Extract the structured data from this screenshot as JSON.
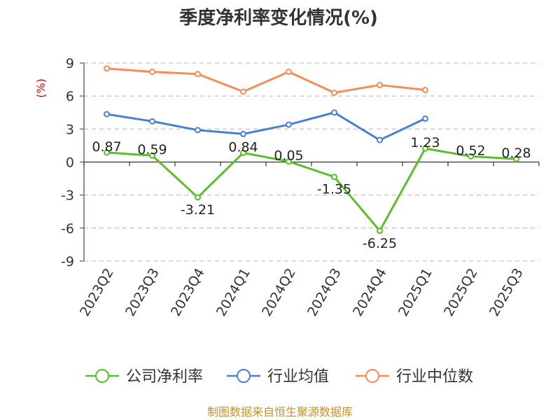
{
  "chart_data": {
    "type": "line",
    "title": "季度净利率变化情况(%)",
    "unit_label": "(%)",
    "categories": [
      "2023Q2",
      "2023Q3",
      "2023Q4",
      "2024Q1",
      "2024Q2",
      "2024Q3",
      "2024Q4",
      "2025Q1",
      "2025Q2",
      "2025Q3"
    ],
    "ylim": [
      -9,
      9
    ],
    "yticks": [
      "9",
      "6",
      "3",
      "0",
      "-3",
      "-6",
      "-9"
    ],
    "grid": true,
    "legend_position": "bottom",
    "series": [
      {
        "name": "公司净利率",
        "color": "#5cbf2a",
        "values": [
          0.87,
          0.59,
          -3.21,
          0.84,
          0.05,
          -1.35,
          -6.25,
          1.23,
          0.52,
          0.28
        ],
        "labels": [
          "0.87",
          "0.59",
          "-3.21",
          "0.84",
          "0.05",
          "-1.35",
          "-6.25",
          "1.23",
          "0.52",
          "0.28"
        ]
      },
      {
        "name": "行业均值",
        "color": "#4a7fd8",
        "values": [
          4.35,
          3.7,
          2.9,
          2.55,
          3.4,
          4.5,
          2.0,
          3.95,
          null,
          null
        ]
      },
      {
        "name": "行业中位数",
        "color": "#f78d55",
        "values": [
          8.5,
          8.2,
          8.0,
          6.4,
          8.2,
          6.3,
          7.0,
          6.55,
          null,
          null
        ]
      }
    ]
  },
  "source_text": "制图数据来自恒生聚源数据库"
}
